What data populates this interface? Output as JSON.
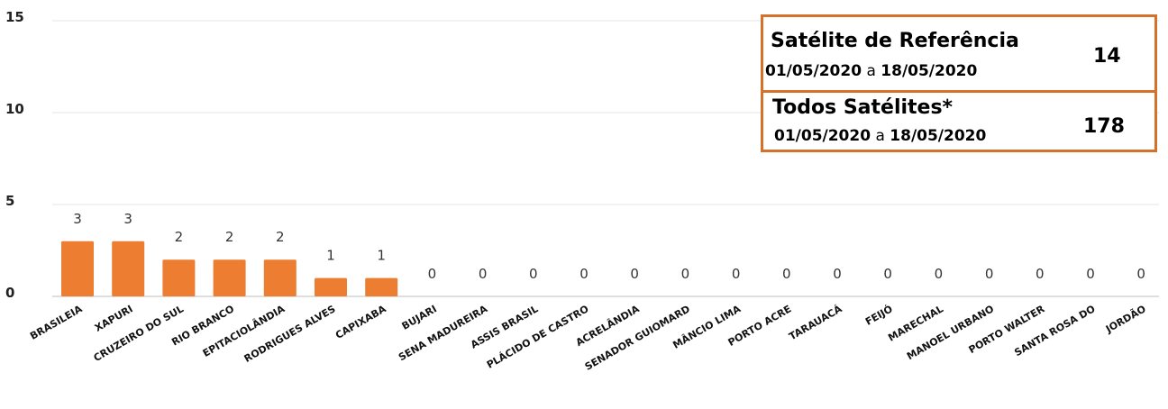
{
  "chart_data": {
    "type": "bar",
    "categories": [
      "BRASILEIA",
      "XAPURI",
      "CRUZEIRO DO SUL",
      "RIO BRANCO",
      "EPITACIOLÂNDIA",
      "RODRIGUES ALVES",
      "CAPIXABA",
      "BUJARI",
      "SENA MADUREIRA",
      "ASSIS BRASIL",
      "PLÁCIDO DE CASTRO",
      "ACRELÂNDIA",
      "SENADOR GUIOMARD",
      "MÂNCIO LIMA",
      "PORTO ACRE",
      "TARAUACÁ",
      "FEIJÓ",
      "MARECHAL",
      "MANOEL URBANO",
      "PORTO WALTER",
      "SANTA ROSA DO",
      "JORDÃO"
    ],
    "values": [
      3,
      3,
      2,
      2,
      2,
      1,
      1,
      0,
      0,
      0,
      0,
      0,
      0,
      0,
      0,
      0,
      0,
      0,
      0,
      0,
      0,
      0
    ],
    "yticks": [
      0,
      5,
      10,
      15
    ],
    "ylim": [
      0,
      15
    ],
    "bar_color": "#ed7d31",
    "grid": true
  },
  "legend_table": {
    "border_color": "#d4722c",
    "row1": {
      "title": "Satélite de Referência",
      "date_start": "01/05/2020",
      "date_sep": "a",
      "date_end": "18/05/2020",
      "value": "14"
    },
    "row2": {
      "title": "Todos Satélites*",
      "date_start": "01/05/2020",
      "date_sep": "a",
      "date_end": "18/05/2020",
      "value": "178"
    }
  }
}
